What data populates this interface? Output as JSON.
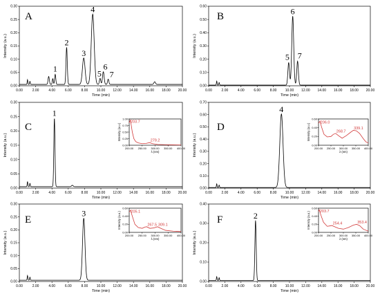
{
  "chart_data": [
    {
      "panel": "A",
      "type": "line",
      "xlabel": "Time (min)",
      "ylabel": "Intensity (a.u.)",
      "xlim": [
        0,
        20
      ],
      "ylim": [
        0,
        0.3
      ],
      "xticks": [
        "0.00",
        "2.00",
        "4.00",
        "6.00",
        "8.00",
        "10.00",
        "12.00",
        "14.00",
        "16.00",
        "18.00",
        "20.00"
      ],
      "yticks": [
        "0.00",
        "0.05",
        "0.10",
        "0.15",
        "0.20",
        "0.25",
        "0.30"
      ],
      "baseline": 0.005,
      "peaks": [
        {
          "t": 1.0,
          "h": 0.018,
          "w": 0.04
        },
        {
          "t": 1.3,
          "h": 0.012,
          "w": 0.04
        },
        {
          "t": 3.6,
          "h": 0.03,
          "w": 0.08
        },
        {
          "t": 4.1,
          "h": 0.022,
          "w": 0.06
        },
        {
          "label": "1",
          "t": 4.4,
          "h": 0.038,
          "w": 0.07
        },
        {
          "label": "2",
          "t": 5.8,
          "h": 0.14,
          "w": 0.08
        },
        {
          "label": "3",
          "t": 7.9,
          "h": 0.1,
          "w": 0.16
        },
        {
          "label": "4",
          "t": 9.0,
          "h": 0.265,
          "w": 0.18
        },
        {
          "label": "5",
          "t": 9.9,
          "h": 0.023,
          "w": 0.08
        },
        {
          "label": "6",
          "t": 10.3,
          "h": 0.048,
          "w": 0.1
        },
        {
          "label": "7",
          "t": 10.9,
          "h": 0.02,
          "w": 0.08
        },
        {
          "t": 16.6,
          "h": 0.01,
          "w": 0.1
        }
      ]
    },
    {
      "panel": "B",
      "type": "line",
      "xlabel": "Time (min)",
      "ylabel": "Intensity (a.u.)",
      "xlim": [
        0,
        20
      ],
      "ylim": [
        0,
        0.6
      ],
      "xticks": [
        "0.00",
        "2.00",
        "4.00",
        "6.00",
        "8.00",
        "10.00",
        "12.00",
        "14.00",
        "16.00",
        "18.00",
        "20.00"
      ],
      "yticks": [
        "0.00",
        "0.10",
        "0.20",
        "0.30",
        "0.40",
        "0.50",
        "0.60"
      ],
      "baseline": 0.005,
      "peaks": [
        {
          "t": 1.0,
          "h": 0.03,
          "w": 0.04
        },
        {
          "t": 1.3,
          "h": 0.02,
          "w": 0.04
        },
        {
          "label": "5",
          "t": 9.9,
          "h": 0.17,
          "w": 0.1
        },
        {
          "label": "6",
          "t": 10.4,
          "h": 0.52,
          "w": 0.12
        },
        {
          "label": "7",
          "t": 11.0,
          "h": 0.18,
          "w": 0.1
        }
      ]
    },
    {
      "panel": "C",
      "type": "line",
      "xlabel": "Time (min)",
      "ylabel": "Intensity (a.u.)",
      "xlim": [
        0,
        20
      ],
      "ylim": [
        0,
        0.3
      ],
      "xticks": [
        "0.00",
        "2.00",
        "4.00",
        "6.00",
        "8.00",
        "10.00",
        "12.00",
        "14.00",
        "16.00",
        "18.00",
        "20.00"
      ],
      "yticks": [
        "0.00",
        "0.05",
        "0.10",
        "0.15",
        "0.20",
        "0.25",
        "0.30"
      ],
      "baseline": 0.005,
      "peaks": [
        {
          "t": 1.0,
          "h": 0.018,
          "w": 0.04
        },
        {
          "t": 1.3,
          "h": 0.012,
          "w": 0.04
        },
        {
          "label": "1",
          "t": 4.3,
          "h": 0.24,
          "w": 0.07
        },
        {
          "t": 6.5,
          "h": 0.005,
          "w": 0.1
        }
      ],
      "inset": {
        "xlabel": "λ (nm)",
        "ylabel": "Intensity (a.u.)",
        "xlim": [
          200,
          400
        ],
        "ylim": [
          0,
          1.0
        ],
        "xticks": [
          "200.00",
          "250.00",
          "300.00",
          "350.00",
          "400.00"
        ],
        "yticks": [
          "0.00",
          "0.25",
          "0.50",
          "0.75",
          "1.00"
        ],
        "spectrum": [
          [
            200,
            0.85
          ],
          [
            204,
            0.95
          ],
          [
            207,
            0.82
          ],
          [
            212,
            0.5
          ],
          [
            218,
            0.25
          ],
          [
            225,
            0.14
          ],
          [
            235,
            0.09
          ],
          [
            250,
            0.06
          ],
          [
            265,
            0.07
          ],
          [
            279,
            0.1
          ],
          [
            290,
            0.06
          ],
          [
            310,
            0.03
          ],
          [
            340,
            0.02
          ],
          [
            370,
            0.015
          ],
          [
            400,
            0.01
          ]
        ],
        "peak_labels": [
          {
            "text": "203.7",
            "x": 203.7,
            "y": 0.95
          },
          {
            "text": "279.2",
            "x": 279.2,
            "y": 0.1
          }
        ]
      }
    },
    {
      "panel": "D",
      "type": "line",
      "xlabel": "Time (min)",
      "ylabel": "Intensity (a.u.)",
      "xlim": [
        0,
        20
      ],
      "ylim": [
        0,
        0.7
      ],
      "xticks": [
        "0.00",
        "2.00",
        "4.00",
        "6.00",
        "8.00",
        "10.00",
        "12.00",
        "14.00",
        "16.00",
        "18.00",
        "20.00"
      ],
      "yticks": [
        "0.00",
        "0.10",
        "0.20",
        "0.30",
        "0.40",
        "0.50",
        "0.60",
        "0.70"
      ],
      "baseline": 0.005,
      "peaks": [
        {
          "t": 1.0,
          "h": 0.03,
          "w": 0.04
        },
        {
          "t": 1.3,
          "h": 0.02,
          "w": 0.04
        },
        {
          "label": "4",
          "t": 9.0,
          "h": 0.6,
          "w": 0.2
        }
      ],
      "inset": {
        "xlabel": "λ (nm)",
        "ylabel": "Intensity (a.u.)",
        "xlim": [
          200,
          400
        ],
        "ylim": [
          0,
          0.6
        ],
        "xticks": [
          "200.00",
          "250.00",
          "300.00",
          "350.00",
          "400.00"
        ],
        "yticks": [
          "0.00",
          "0.20",
          "0.40",
          "0.60"
        ],
        "spectrum": [
          [
            200,
            0.5
          ],
          [
            206,
            0.55
          ],
          [
            212,
            0.42
          ],
          [
            222,
            0.25
          ],
          [
            235,
            0.19
          ],
          [
            250,
            0.2
          ],
          [
            260,
            0.25
          ],
          [
            269,
            0.27
          ],
          [
            280,
            0.22
          ],
          [
            295,
            0.16
          ],
          [
            312,
            0.22
          ],
          [
            330,
            0.3
          ],
          [
            340,
            0.34
          ],
          [
            352,
            0.33
          ],
          [
            365,
            0.27
          ],
          [
            380,
            0.15
          ],
          [
            390,
            0.08
          ],
          [
            400,
            0.05
          ]
        ],
        "peak_labels": [
          {
            "text": "206.0",
            "x": 206.0,
            "y": 0.55
          },
          {
            "text": "268.7",
            "x": 268.7,
            "y": 0.27
          },
          {
            "text": "339.1",
            "x": 339.1,
            "y": 0.34
          }
        ]
      }
    },
    {
      "panel": "E",
      "type": "line",
      "xlabel": "Time (min)",
      "ylabel": "Intensity (a.u.)",
      "xlim": [
        0,
        20
      ],
      "ylim": [
        0,
        0.3
      ],
      "xticks": [
        "0.00",
        "2.00",
        "4.00",
        "6.00",
        "8.00",
        "10.00",
        "12.00",
        "14.00",
        "16.00",
        "18.00",
        "20.00"
      ],
      "yticks": [
        "0.00",
        "0.05",
        "0.10",
        "0.15",
        "0.20",
        "0.25",
        "0.30"
      ],
      "baseline": 0.005,
      "peaks": [
        {
          "t": 1.0,
          "h": 0.018,
          "w": 0.04
        },
        {
          "t": 1.3,
          "h": 0.012,
          "w": 0.04
        },
        {
          "label": "3",
          "t": 7.9,
          "h": 0.24,
          "w": 0.15
        }
      ],
      "inset": {
        "xlabel": "λ (nm)",
        "ylabel": "Intensity (a.u.)",
        "xlim": [
          200,
          400
        ],
        "ylim": [
          0,
          0.6
        ],
        "xticks": [
          "200.00",
          "250.00",
          "300.00",
          "350.00",
          "400.00"
        ],
        "yticks": [
          "0.00",
          "0.20",
          "0.40",
          "0.60"
        ],
        "spectrum": [
          [
            200,
            0.5
          ],
          [
            205,
            0.55
          ],
          [
            212,
            0.4
          ],
          [
            222,
            0.2
          ],
          [
            235,
            0.12
          ],
          [
            250,
            0.1
          ],
          [
            260,
            0.13
          ],
          [
            267,
            0.14
          ],
          [
            280,
            0.1
          ],
          [
            295,
            0.11
          ],
          [
            309,
            0.14
          ],
          [
            322,
            0.1
          ],
          [
            340,
            0.05
          ],
          [
            370,
            0.03
          ],
          [
            400,
            0.02
          ]
        ],
        "peak_labels": [
          {
            "text": "205.1",
            "x": 205.1,
            "y": 0.55
          },
          {
            "text": "267.5",
            "x": 267.5,
            "y": 0.14
          },
          {
            "text": "309.1",
            "x": 309.1,
            "y": 0.14
          }
        ]
      }
    },
    {
      "panel": "F",
      "type": "line",
      "xlabel": "Time (min)",
      "ylabel": "Intensity (a.u.)",
      "xlim": [
        0,
        20
      ],
      "ylim": [
        0,
        0.4
      ],
      "xticks": [
        "0.00",
        "2.00",
        "4.00",
        "6.00",
        "8.00",
        "10.00",
        "12.00",
        "14.00",
        "16.00",
        "18.00",
        "20.00"
      ],
      "yticks": [
        "0.00",
        "0.10",
        "0.20",
        "0.30",
        "0.40"
      ],
      "baseline": 0.005,
      "peaks": [
        {
          "t": 1.0,
          "h": 0.02,
          "w": 0.04
        },
        {
          "t": 1.3,
          "h": 0.015,
          "w": 0.04
        },
        {
          "label": "2",
          "t": 5.8,
          "h": 0.31,
          "w": 0.08
        }
      ],
      "inset": {
        "xlabel": "λ (nm)",
        "ylabel": "Intensity (a.u.)",
        "xlim": [
          200,
          400
        ],
        "ylim": [
          0,
          0.6
        ],
        "xticks": [
          "200.00",
          "250.00",
          "300.00",
          "350.00",
          "400.00"
        ],
        "yticks": [
          "0.00",
          "0.20",
          "0.40",
          "0.60"
        ],
        "spectrum": [
          [
            200,
            0.52
          ],
          [
            203,
            0.56
          ],
          [
            210,
            0.42
          ],
          [
            220,
            0.25
          ],
          [
            235,
            0.15
          ],
          [
            245,
            0.16
          ],
          [
            254,
            0.17
          ],
          [
            265,
            0.14
          ],
          [
            280,
            0.1
          ],
          [
            300,
            0.08
          ],
          [
            320,
            0.12
          ],
          [
            340,
            0.18
          ],
          [
            353,
            0.2
          ],
          [
            365,
            0.17
          ],
          [
            380,
            0.08
          ],
          [
            400,
            0.03
          ]
        ],
        "peak_labels": [
          {
            "text": "203.7",
            "x": 203.7,
            "y": 0.56
          },
          {
            "text": "254.4",
            "x": 254.4,
            "y": 0.17
          },
          {
            "text": "353.4",
            "x": 353.4,
            "y": 0.2
          }
        ]
      }
    }
  ]
}
